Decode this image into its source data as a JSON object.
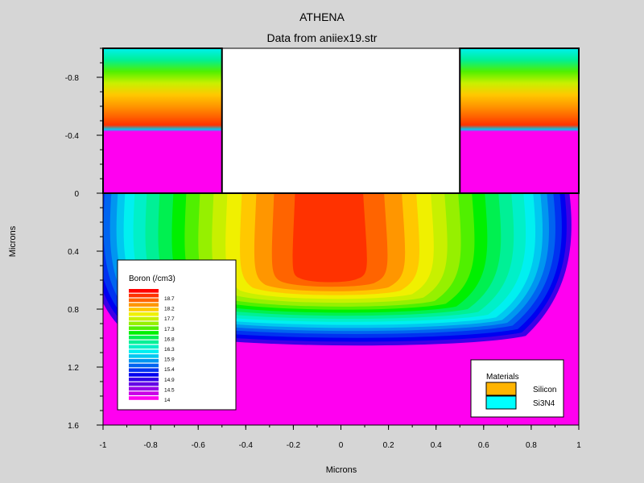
{
  "chart_data": {
    "type": "heatmap",
    "title": "ATHENA",
    "subtitle": "Data from aniiex19.str",
    "xlabel": "Microns",
    "ylabel": "Microns",
    "xlim": [
      -1,
      1
    ],
    "ylim": [
      -1.0,
      1.6
    ],
    "y_inverted": true,
    "x_ticks": [
      -1,
      -0.8,
      -0.6,
      -0.4,
      -0.2,
      0,
      0.2,
      0.4,
      0.6,
      0.8,
      1
    ],
    "x_tick_labels": [
      "-1",
      "-0.8",
      "-0.6",
      "-0.4",
      "-0.2",
      "0",
      "0.2",
      "0.4",
      "0.6",
      "0.8",
      "1"
    ],
    "y_ticks": [
      -0.8,
      -0.4,
      0,
      0.4,
      0.8,
      1.2,
      1.6
    ],
    "y_tick_labels": [
      "-0.8",
      "-0.4",
      "0",
      "0.4",
      "0.8",
      "1.2",
      "1.6"
    ],
    "structure": {
      "substrate": {
        "material": "Silicon",
        "x": [
          -1,
          1
        ],
        "y": [
          0,
          1.6
        ]
      },
      "nitride_blocks": [
        {
          "x": [
            -1,
            -0.5
          ],
          "y": [
            -1.0,
            0
          ]
        },
        {
          "x": [
            0.5,
            1
          ],
          "y": [
            -1.0,
            0
          ]
        }
      ]
    },
    "boron_profile": {
      "peak_log10": 18.4,
      "peak_center": [
        -0.05,
        0.55
      ],
      "background_log10": 14
    },
    "legend": {
      "title": "Boron (/cm3)",
      "placement": "lower-left",
      "labels": [
        "18.7",
        "18.2",
        "17.7",
        "17.3",
        "16.8",
        "16.3",
        "15.9",
        "15.4",
        "14.9",
        "14.5",
        "14"
      ],
      "colors": [
        "#ff0000",
        "#ff3200",
        "#ff6400",
        "#ff9600",
        "#ffc800",
        "#f0f000",
        "#c8f000",
        "#96f000",
        "#50f000",
        "#00f000",
        "#00f050",
        "#00f096",
        "#00f0c8",
        "#00f0f0",
        "#00c8f0",
        "#0096f0",
        "#0064f0",
        "#0032f0",
        "#0000f0",
        "#3200e6",
        "#6400e6",
        "#9600e6",
        "#c800e6",
        "#ff00f0"
      ]
    },
    "materials_legend": {
      "title": "Materials",
      "placement": "lower-right",
      "items": [
        {
          "name": "Silicon",
          "color": "#ffb400"
        },
        {
          "name": "Si3N4",
          "color": "#00ffff"
        }
      ]
    }
  }
}
